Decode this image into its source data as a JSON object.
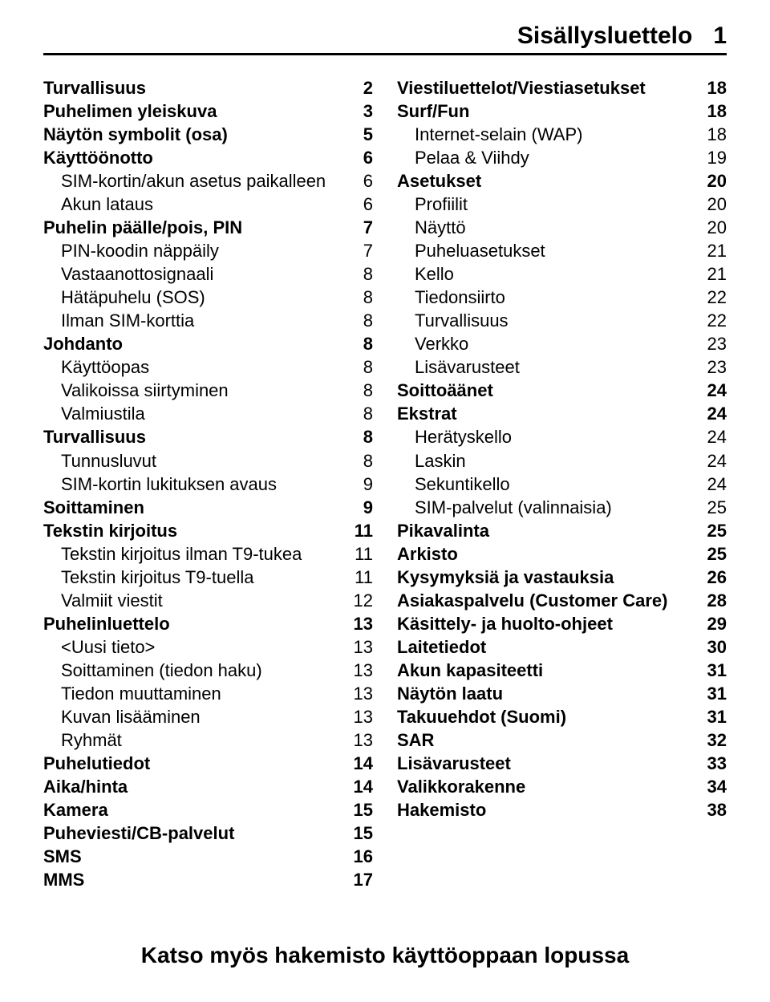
{
  "header": {
    "title": "Sisällysluettelo",
    "page": "1"
  },
  "footer": "Katso myös hakemisto käyttöoppaan lopussa",
  "left": [
    {
      "label": "Turvallisuus",
      "page": "2",
      "bold": true,
      "indent": 0
    },
    {
      "label": "Puhelimen yleiskuva",
      "page": "3",
      "bold": true,
      "indent": 0
    },
    {
      "label": "Näytön symbolit (osa)",
      "page": "5",
      "bold": true,
      "indent": 0
    },
    {
      "label": "Käyttöönotto",
      "page": "6",
      "bold": true,
      "indent": 0
    },
    {
      "label": "SIM-kortin/akun asetus paikalleen",
      "page": "6",
      "bold": false,
      "indent": 1
    },
    {
      "label": "Akun lataus",
      "page": "6",
      "bold": false,
      "indent": 1
    },
    {
      "label": "Puhelin päälle/pois, PIN",
      "page": "7",
      "bold": true,
      "indent": 0
    },
    {
      "label": "PIN-koodin näppäily",
      "page": "7",
      "bold": false,
      "indent": 1
    },
    {
      "label": "Vastaanottosignaali",
      "page": "8",
      "bold": false,
      "indent": 1
    },
    {
      "label": "Hätäpuhelu (SOS)",
      "page": "8",
      "bold": false,
      "indent": 1
    },
    {
      "label": "Ilman SIM-korttia",
      "page": "8",
      "bold": false,
      "indent": 1
    },
    {
      "label": "Johdanto",
      "page": "8",
      "bold": true,
      "indent": 0
    },
    {
      "label": "Käyttöopas",
      "page": "8",
      "bold": false,
      "indent": 1
    },
    {
      "label": "Valikoissa siirtyminen",
      "page": "8",
      "bold": false,
      "indent": 1
    },
    {
      "label": "Valmiustila",
      "page": "8",
      "bold": false,
      "indent": 1
    },
    {
      "label": "Turvallisuus",
      "page": "8",
      "bold": true,
      "indent": 0
    },
    {
      "label": "Tunnusluvut",
      "page": "8",
      "bold": false,
      "indent": 1
    },
    {
      "label": "SIM-kortin lukituksen avaus",
      "page": "9",
      "bold": false,
      "indent": 1
    },
    {
      "label": "Soittaminen",
      "page": "9",
      "bold": true,
      "indent": 0
    },
    {
      "label": "Tekstin kirjoitus",
      "page": "11",
      "bold": true,
      "indent": 0
    },
    {
      "label": "Tekstin kirjoitus ilman T9-tukea",
      "page": "11",
      "bold": false,
      "indent": 1
    },
    {
      "label": "Tekstin kirjoitus T9-tuella",
      "page": "11",
      "bold": false,
      "indent": 1
    },
    {
      "label": "Valmiit viestit",
      "page": "12",
      "bold": false,
      "indent": 1
    },
    {
      "label": "Puhelinluettelo",
      "page": "13",
      "bold": true,
      "indent": 0
    },
    {
      "label": "<Uusi tieto>",
      "page": "13",
      "bold": false,
      "indent": 1
    },
    {
      "label": "Soittaminen (tiedon haku)",
      "page": "13",
      "bold": false,
      "indent": 1
    },
    {
      "label": "Tiedon muuttaminen",
      "page": "13",
      "bold": false,
      "indent": 1
    },
    {
      "label": "Kuvan lisääminen",
      "page": "13",
      "bold": false,
      "indent": 1
    },
    {
      "label": "Ryhmät",
      "page": "13",
      "bold": false,
      "indent": 1
    },
    {
      "label": "Puhelutiedot",
      "page": "14",
      "bold": true,
      "indent": 0
    },
    {
      "label": "Aika/hinta",
      "page": "14",
      "bold": true,
      "indent": 0
    },
    {
      "label": "Kamera",
      "page": "15",
      "bold": true,
      "indent": 0
    },
    {
      "label": "Puheviesti/CB-palvelut",
      "page": "15",
      "bold": true,
      "indent": 0
    },
    {
      "label": "SMS",
      "page": "16",
      "bold": true,
      "indent": 0
    },
    {
      "label": "MMS",
      "page": "17",
      "bold": true,
      "indent": 0
    }
  ],
  "right": [
    {
      "label": "Viestiluettelot/Viestiasetukset",
      "page": "18",
      "bold": true,
      "indent": 0
    },
    {
      "label": "Surf/Fun",
      "page": "18",
      "bold": true,
      "indent": 0
    },
    {
      "label": "Internet-selain (WAP)",
      "page": "18",
      "bold": false,
      "indent": 1
    },
    {
      "label": "Pelaa & Viihdy",
      "page": "19",
      "bold": false,
      "indent": 1
    },
    {
      "label": "Asetukset",
      "page": "20",
      "bold": true,
      "indent": 0
    },
    {
      "label": "Profiilit",
      "page": "20",
      "bold": false,
      "indent": 1
    },
    {
      "label": "Näyttö",
      "page": "20",
      "bold": false,
      "indent": 1
    },
    {
      "label": "Puheluasetukset",
      "page": "21",
      "bold": false,
      "indent": 1
    },
    {
      "label": "Kello",
      "page": "21",
      "bold": false,
      "indent": 1
    },
    {
      "label": "Tiedonsiirto",
      "page": "22",
      "bold": false,
      "indent": 1
    },
    {
      "label": "Turvallisuus",
      "page": "22",
      "bold": false,
      "indent": 1
    },
    {
      "label": "Verkko",
      "page": "23",
      "bold": false,
      "indent": 1
    },
    {
      "label": "Lisävarusteet",
      "page": "23",
      "bold": false,
      "indent": 1
    },
    {
      "label": "Soittoäänet",
      "page": "24",
      "bold": true,
      "indent": 0
    },
    {
      "label": "Ekstrat",
      "page": "24",
      "bold": true,
      "indent": 0
    },
    {
      "label": "Herätyskello",
      "page": "24",
      "bold": false,
      "indent": 1
    },
    {
      "label": "Laskin",
      "page": "24",
      "bold": false,
      "indent": 1
    },
    {
      "label": "Sekuntikello",
      "page": "24",
      "bold": false,
      "indent": 1
    },
    {
      "label": "SIM-palvelut (valinnaisia)",
      "page": "25",
      "bold": false,
      "indent": 1
    },
    {
      "label": "Pikavalinta",
      "page": "25",
      "bold": true,
      "indent": 0
    },
    {
      "label": "Arkisto",
      "page": "25",
      "bold": true,
      "indent": 0
    },
    {
      "label": "Kysymyksiä ja vastauksia",
      "page": "26",
      "bold": true,
      "indent": 0
    },
    {
      "label": "Asiakaspalvelu (Customer Care)",
      "page": "28",
      "bold": true,
      "indent": 0
    },
    {
      "label": "Käsittely- ja huolto-ohjeet",
      "page": "29",
      "bold": true,
      "indent": 0
    },
    {
      "label": "Laitetiedot",
      "page": "30",
      "bold": true,
      "indent": 0
    },
    {
      "label": "Akun kapasiteetti",
      "page": "31",
      "bold": true,
      "indent": 0
    },
    {
      "label": "Näytön laatu",
      "page": "31",
      "bold": true,
      "indent": 0
    },
    {
      "label": "Takuuehdot (Suomi)",
      "page": "31",
      "bold": true,
      "indent": 0
    },
    {
      "label": "SAR",
      "page": "32",
      "bold": true,
      "indent": 0
    },
    {
      "label": "Lisävarusteet",
      "page": "33",
      "bold": true,
      "indent": 0
    },
    {
      "label": "Valikkorakenne",
      "page": "34",
      "bold": true,
      "indent": 0
    },
    {
      "label": "Hakemisto",
      "page": "38",
      "bold": true,
      "indent": 0
    }
  ]
}
